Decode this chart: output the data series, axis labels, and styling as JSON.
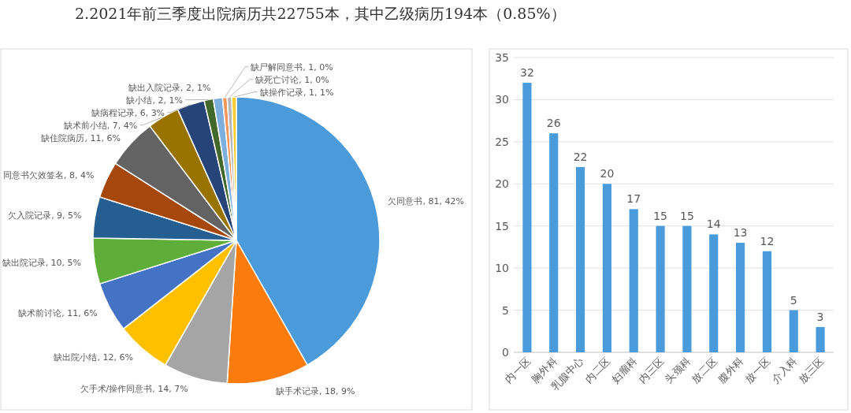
{
  "chart_data": [
    {
      "type": "pie",
      "title": "2.2021年前三季度出院病历共22755本，其中乙级病历194本（0.85%）",
      "categories": [
        "欠同意书",
        "缺手术记录",
        "欠手术/操作同意书",
        "缺出院小结",
        "缺术前讨论",
        "缺出院记录",
        "欠入院记录",
        "同意书欠效签名",
        "缺住院病历",
        "缺术前小结",
        "缺病程记录",
        "缺小结",
        "缺出入院记录",
        "缺尸解同意书",
        "缺死亡讨论",
        "缺操作记录"
      ],
      "values": [
        81,
        18,
        14,
        12,
        11,
        10,
        9,
        8,
        11,
        7,
        6,
        2,
        2,
        1,
        1,
        1
      ],
      "value_labels": [
        "81, 42%",
        "18, 9%",
        "14, 7%",
        "12, 6%",
        "11, 6%",
        "10, 5%",
        "9, 5%",
        "8, 4%",
        "11, 6%",
        "7, 4%",
        "6, 3%",
        "2, 1%",
        "2, 1%",
        "1, 0%",
        "1, 0%",
        "1, 1%"
      ],
      "colors": [
        "#4b9bdb",
        "#fb7b0c",
        "#a5a5a5",
        "#ffc000",
        "#4472c4",
        "#5fae3a",
        "#255e91",
        "#a6470b",
        "#636363",
        "#997300",
        "#264478",
        "#43682b",
        "#7cafdd",
        "#f1975a",
        "#b7b7b7",
        "#ffcd33"
      ]
    },
    {
      "type": "bar",
      "categories": [
        "内一区",
        "胸外科",
        "乳腺中心",
        "内二区",
        "妇瘤科",
        "内三区",
        "头颈科",
        "放二区",
        "腹外科",
        "放一区",
        "介入科",
        "放三区"
      ],
      "values": [
        32,
        26,
        22,
        20,
        17,
        15,
        15,
        14,
        13,
        12,
        5,
        3
      ],
      "color": "#4a9bdc",
      "ylim": [
        0,
        35
      ],
      "yticks": [
        0,
        5,
        10,
        15,
        20,
        25,
        30,
        35
      ],
      "grid": "y",
      "data_labels": true
    }
  ]
}
